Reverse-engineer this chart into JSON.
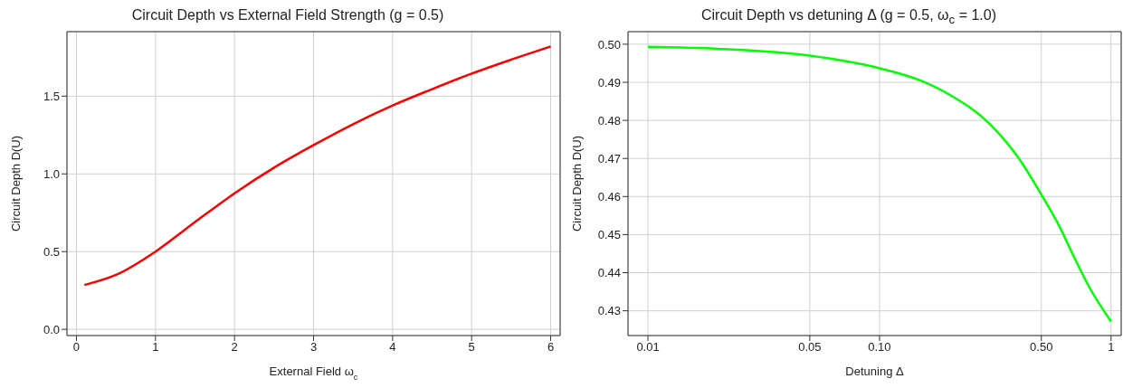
{
  "chart_data": [
    {
      "type": "line",
      "title": "Circuit Depth vs External Field Strength (g = 0.5)",
      "xlabel": "External Field ω$_{c}$",
      "ylabel": "Circuit Depth D(U)",
      "x": [
        0.1,
        0.5,
        1,
        1.5,
        2,
        2.5,
        3,
        3.5,
        4,
        4.5,
        5,
        5.5,
        6
      ],
      "series": [
        {
          "color": "#ff0000",
          "values": [
            0.285,
            0.35,
            0.5,
            0.69,
            0.875,
            1.04,
            1.185,
            1.32,
            1.44,
            1.545,
            1.645,
            1.735,
            1.82
          ]
        }
      ],
      "xlim": [
        -0.12,
        6.12
      ],
      "ylim": [
        -0.04,
        1.915
      ],
      "xticks": [
        0,
        1,
        2,
        3,
        4,
        5,
        6
      ],
      "yticks": [
        {
          "value": 0,
          "label": "0.0"
        },
        0.5,
        {
          "value": 1,
          "label": "1.0"
        },
        1.5
      ],
      "grid": true,
      "line_style": "solid"
    },
    {
      "type": "line",
      "title": "Circuit Depth vs detuning Δ (g = 0.5, ω$_{c}$ = 1.0)",
      "xlabel": "Detuning Δ",
      "ylabel": "Circuit Depth D(U)",
      "x": [
        0.01,
        0.02,
        0.05,
        0.1,
        0.15,
        0.2,
        0.3,
        0.4,
        0.5,
        0.6,
        0.7,
        0.8,
        1
      ],
      "series": [
        {
          "color": "#00ff00",
          "values": [
            0.4993,
            0.4988,
            0.497,
            0.4937,
            0.4905,
            0.4868,
            0.479,
            0.47,
            0.4605,
            0.452,
            0.4435,
            0.4365,
            0.4272
          ]
        }
      ],
      "xlim": [
        0.0082,
        1.106
      ],
      "ylim": [
        0.4235,
        0.5033
      ],
      "log": "x",
      "xticks": [
        0.01,
        0.05,
        {
          "value": 0.1,
          "label": "0.10"
        },
        {
          "value": 0.5,
          "label": "0.50"
        },
        1
      ],
      "yticks": [
        {
          "value": 0.43,
          "label": "0.43"
        },
        {
          "value": 0.44,
          "label": "0.44"
        },
        {
          "value": 0.45,
          "label": "0.45"
        },
        {
          "value": 0.46,
          "label": "0.46"
        },
        {
          "value": 0.47,
          "label": "0.47"
        },
        {
          "value": 0.48,
          "label": "0.48"
        },
        {
          "value": 0.49,
          "label": "0.49"
        },
        {
          "value": 0.5,
          "label": "0.50"
        }
      ],
      "grid": true,
      "line_style": "solid"
    }
  ]
}
